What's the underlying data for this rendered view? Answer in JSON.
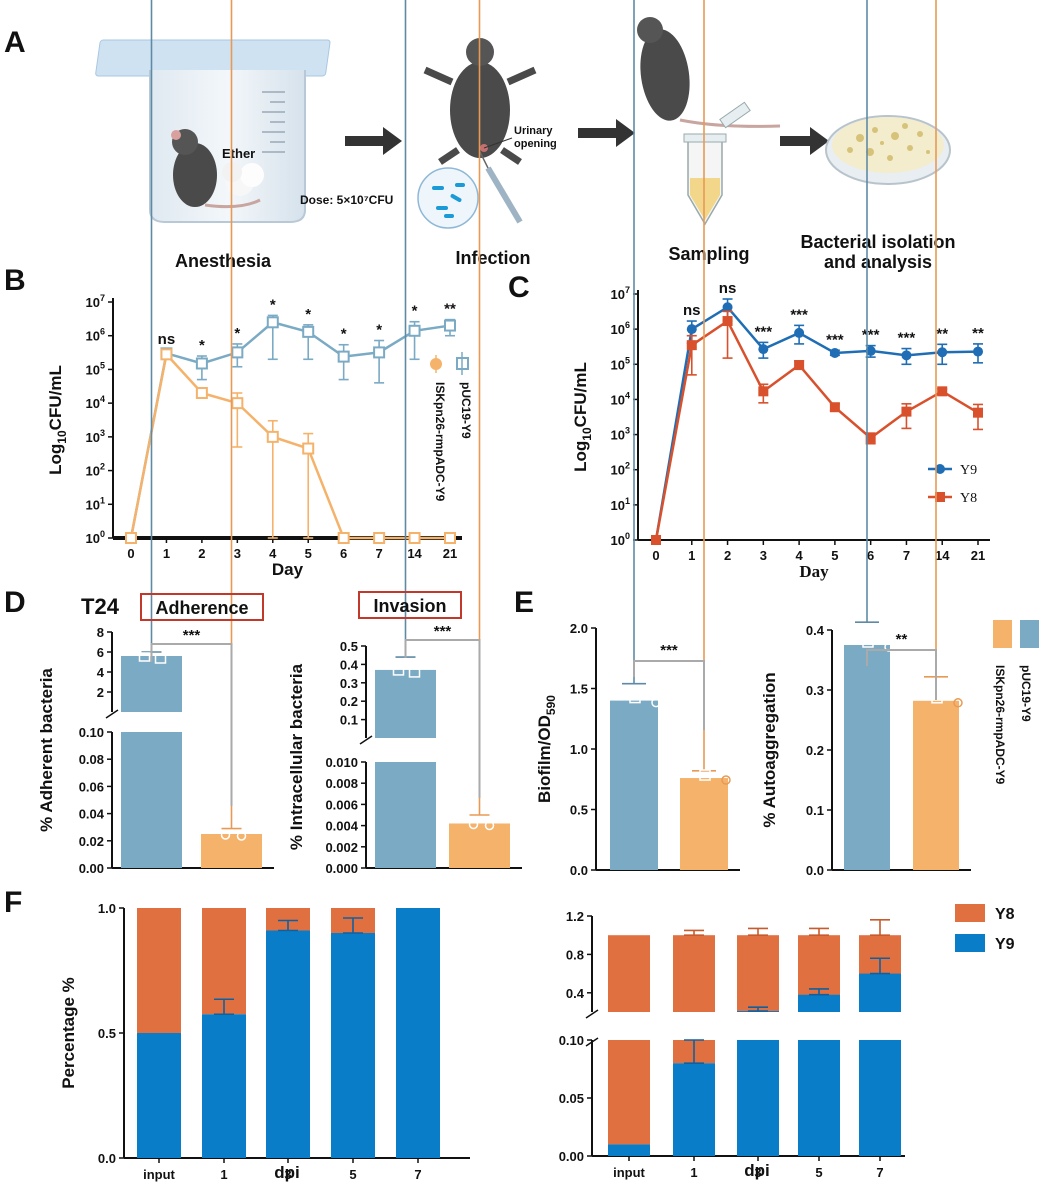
{
  "panel_letters": {
    "a": "A",
    "b": "B",
    "c": "C",
    "d": "D",
    "e": "E",
    "f": "F"
  },
  "panel_a": {
    "ether_label": "Ether",
    "dose_label": "Dose: 5×10⁷CFU",
    "urinary_label": "Urinary opening",
    "step_labels": [
      "Anesthesia",
      "Infection",
      "Sampling",
      "Bacterial isolation and analysis"
    ]
  },
  "colors": {
    "pUC": "#7aaac4",
    "ISK": "#f5b26b",
    "Y9": "#1f6eb5",
    "Y8": "#d9512c",
    "bar_y9": "#0a7dc8",
    "bar_y8": "#e07040"
  },
  "chart_data": [
    {
      "id": "B",
      "type": "line",
      "ylabel": "Log10CFU/mL",
      "xlabel": "Day",
      "categories": [
        "0",
        "1",
        "2",
        "3",
        "4",
        "5",
        "6",
        "7",
        "14",
        "21"
      ],
      "yscale": "log",
      "ylim": [
        1,
        10000000
      ],
      "yticks": [
        "10^0",
        "10^1",
        "10^2",
        "10^3",
        "10^4",
        "10^5",
        "10^6",
        "10^7"
      ],
      "series": [
        {
          "name": "pUC19-Y9",
          "values": [
            1,
            300000,
            150000,
            320000,
            2500000,
            1300000,
            240000,
            320000,
            1400000,
            2000000
          ],
          "err_upper": [
            0,
            80000,
            100000,
            250000,
            1500000,
            800000,
            300000,
            400000,
            1200000,
            1000000
          ],
          "err_lower": [
            0,
            80000,
            100000,
            200000,
            2300000,
            1100000,
            190000,
            280000,
            1200000,
            1000000
          ]
        },
        {
          "name": "ISKpn26-rmpADC-Y9",
          "values": [
            1,
            280000,
            20000,
            10000,
            1000,
            450,
            1,
            1,
            1,
            1
          ],
          "err_upper": [
            0,
            50000,
            5000,
            10000,
            2000,
            800,
            0,
            0,
            0,
            0
          ],
          "err_lower": [
            0,
            50000,
            5000,
            9500,
            999,
            449,
            0,
            0,
            0,
            0
          ]
        }
      ],
      "significance": [
        "",
        "ns",
        "*",
        "*",
        "*",
        "*",
        "*",
        "*",
        "*",
        "**"
      ],
      "legend": [
        "ISKpn26-rmpADC-Y9",
        "pUC19-Y9"
      ]
    },
    {
      "id": "C",
      "type": "line",
      "ylabel": "Log10CFU/mL",
      "xlabel": "Day",
      "categories": [
        "0",
        "1",
        "2",
        "3",
        "4",
        "5",
        "6",
        "7",
        "14",
        "21"
      ],
      "yscale": "log",
      "ylim": [
        1,
        10000000
      ],
      "yticks": [
        "10^0",
        "10^1",
        "10^2",
        "10^3",
        "10^4",
        "10^5",
        "10^6",
        "10^7"
      ],
      "series": [
        {
          "name": "Y9",
          "values": [
            1,
            1000000,
            4200000,
            270000,
            780000,
            210000,
            240000,
            180000,
            220000,
            230000
          ],
          "err_upper": [
            0,
            700000,
            3000000,
            150000,
            500000,
            40000,
            100000,
            100000,
            150000,
            150000
          ],
          "err_lower": [
            0,
            600000,
            2500000,
            120000,
            400000,
            30000,
            80000,
            80000,
            120000,
            120000
          ]
        },
        {
          "name": "Y8",
          "values": [
            1,
            350000,
            1700000,
            17000,
            95000,
            6000,
            800,
            4500,
            17000,
            4200
          ],
          "err_upper": [
            0,
            300000,
            1500000,
            10000,
            30000,
            1500,
            300,
            3000,
            3000,
            3000
          ],
          "err_lower": [
            0,
            300000,
            1550000,
            9000,
            20000,
            1200,
            250,
            3000,
            3000,
            2800
          ]
        }
      ],
      "significance": [
        "",
        "ns",
        "ns",
        "***",
        "***",
        "***",
        "***",
        "***",
        "**",
        "**"
      ],
      "legend": [
        "Y9",
        "Y8"
      ]
    },
    {
      "id": "D-adherence",
      "type": "bar",
      "title": "T24",
      "subtitle": "Adherence",
      "ylabel": "% Adherent bacteria",
      "categories": [
        "pUC19-Y9",
        "ISKpn26-rmpADC-Y9"
      ],
      "values": [
        5.6,
        0.025
      ],
      "errors": [
        0.4,
        0.004
      ],
      "significance": "***",
      "upper_ticks": [
        "2",
        "4",
        "6",
        "8"
      ],
      "lower_ticks": [
        "0.00",
        "0.02",
        "0.04",
        "0.06",
        "0.08",
        "0.10"
      ]
    },
    {
      "id": "D-invasion",
      "type": "bar",
      "subtitle": "Invasion",
      "ylabel": "% Intracellular bacteria",
      "categories": [
        "pUC19-Y9",
        "ISKpn26-rmpADC-Y9"
      ],
      "values": [
        0.37,
        0.0042
      ],
      "errors": [
        0.07,
        0.0008
      ],
      "significance": "***",
      "upper_ticks": [
        "0.1",
        "0.2",
        "0.3",
        "0.4",
        "0.5"
      ],
      "lower_ticks": [
        "0.000",
        "0.002",
        "0.004",
        "0.006",
        "0.008",
        "0.010"
      ]
    },
    {
      "id": "E-biofilm",
      "type": "bar",
      "ylabel": "Biofilm/OD590",
      "categories": [
        "pUC19-Y9",
        "ISKpn26-rmpADC-Y9"
      ],
      "values": [
        1.4,
        0.76
      ],
      "errors": [
        0.14,
        0.06
      ],
      "ylim": [
        0,
        2.0
      ],
      "yticks": [
        "0.0",
        "0.5",
        "1.0",
        "1.5",
        "2.0"
      ],
      "significance": "***"
    },
    {
      "id": "E-autoaggregation",
      "type": "bar",
      "ylabel": "% Autoaggregation",
      "categories": [
        "pUC19-Y9",
        "ISKpn26-rmpADC-Y9"
      ],
      "values": [
        0.375,
        0.282
      ],
      "errors": [
        0.038,
        0.04
      ],
      "ylim": [
        0,
        0.4
      ],
      "yticks": [
        "0.0",
        "0.1",
        "0.2",
        "0.3",
        "0.4"
      ],
      "significance": "**",
      "legend": [
        "ISKpn26-rmpADC-Y9",
        "pUC19-Y9"
      ]
    },
    {
      "id": "F-left",
      "type": "bar",
      "stacked": true,
      "ylabel": "Percentage %",
      "xlabel": "dpi",
      "categories": [
        "input",
        "1",
        "3",
        "5",
        "7"
      ],
      "series": [
        {
          "name": "Y9",
          "values": [
            0.5,
            0.575,
            0.91,
            0.9,
            1.0
          ],
          "errors": [
            0,
            0.06,
            0.04,
            0.06,
            0
          ]
        },
        {
          "name": "Y8",
          "values": [
            0.5,
            0.425,
            0.09,
            0.1,
            0.0
          ]
        }
      ],
      "ylim": [
        0,
        1.0
      ],
      "yticks": [
        "0.0",
        "0.5",
        "1.0"
      ]
    },
    {
      "id": "F-right",
      "type": "bar",
      "stacked": true,
      "xlabel": "dpi",
      "categories": [
        "input",
        "1",
        "3",
        "5",
        "7"
      ],
      "series": [
        {
          "name": "Y9",
          "values": [
            0.01,
            0.08,
            0.21,
            0.38,
            0.6
          ],
          "errors": [
            0,
            0.02,
            0.04,
            0.06,
            0.16
          ]
        },
        {
          "name": "Y8",
          "values": [
            0.99,
            0.92,
            0.79,
            0.62,
            0.4
          ],
          "errors": [
            0,
            0.05,
            0.07,
            0.07,
            0.16
          ]
        }
      ],
      "upper_ticks": [
        "0.4",
        "0.8",
        "1.2"
      ],
      "lower_ticks": [
        "0.00",
        "0.05",
        "0.10"
      ],
      "legend": [
        "Y8",
        "Y9"
      ]
    }
  ]
}
